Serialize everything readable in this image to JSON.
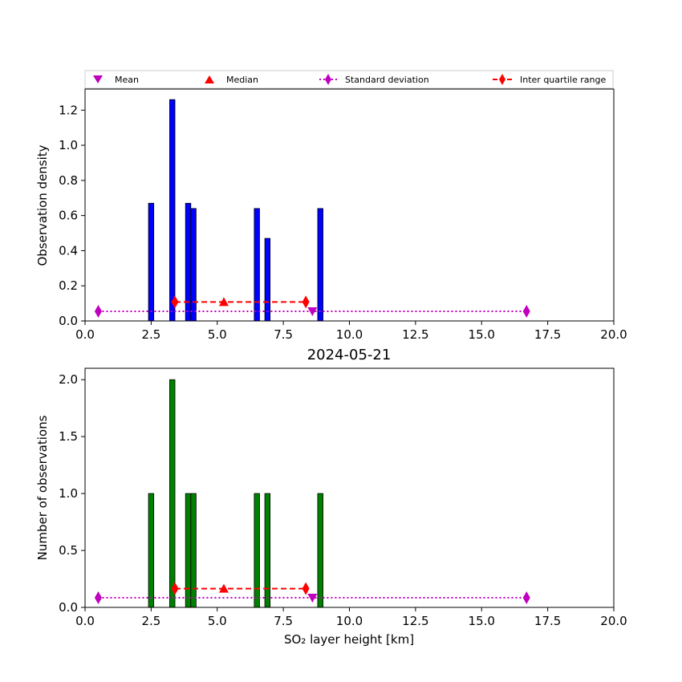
{
  "chart_data": [
    {
      "type": "bar",
      "title": "",
      "xlabel": "",
      "ylabel": "Observation density",
      "xlim": [
        0,
        20
      ],
      "ylim": [
        0,
        1.32
      ],
      "xticks": [
        "0.0",
        "2.5",
        "5.0",
        "7.5",
        "10.0",
        "12.5",
        "15.0",
        "17.5",
        "20.0"
      ],
      "yticks": [
        "0.0",
        "0.2",
        "0.4",
        "0.6",
        "0.8",
        "1.0",
        "1.2"
      ],
      "ytick_values": [
        0,
        0.2,
        0.4,
        0.6,
        0.8,
        1.0,
        1.2
      ],
      "bar_color": "#0000ff",
      "bars": [
        {
          "x0": 2.4,
          "x1": 2.6,
          "value": 0.67
        },
        {
          "x0": 3.2,
          "x1": 3.4,
          "value": 1.26
        },
        {
          "x0": 3.8,
          "x1": 4.0,
          "value": 0.67
        },
        {
          "x0": 4.0,
          "x1": 4.2,
          "value": 0.64
        },
        {
          "x0": 6.4,
          "x1": 6.6,
          "value": 0.64
        },
        {
          "x0": 6.8,
          "x1": 7.0,
          "value": 0.47
        },
        {
          "x0": 8.8,
          "x1": 9.0,
          "value": 0.64
        }
      ],
      "stats": {
        "mean": {
          "x": 8.6,
          "y": 0.055
        },
        "median": {
          "x": 5.25,
          "y": 0.108
        },
        "std": {
          "x": [
            0.5,
            16.7
          ],
          "y": 0.055
        },
        "iqr": {
          "x": [
            3.4,
            8.35
          ],
          "y": 0.108
        }
      }
    },
    {
      "type": "bar",
      "title": "2024-05-21",
      "xlabel": "SO₂ layer height [km]",
      "ylabel": "Number of observations",
      "xlim": [
        0,
        20
      ],
      "ylim": [
        0,
        2.1
      ],
      "xticks": [
        "0.0",
        "2.5",
        "5.0",
        "7.5",
        "10.0",
        "12.5",
        "15.0",
        "17.5",
        "20.0"
      ],
      "yticks": [
        "0.0",
        "0.5",
        "1.0",
        "1.5",
        "2.0"
      ],
      "ytick_values": [
        0,
        0.5,
        1.0,
        1.5,
        2.0
      ],
      "bar_color": "#008000",
      "bars": [
        {
          "x0": 2.4,
          "x1": 2.6,
          "value": 1
        },
        {
          "x0": 3.2,
          "x1": 3.4,
          "value": 2
        },
        {
          "x0": 3.8,
          "x1": 4.0,
          "value": 1
        },
        {
          "x0": 4.0,
          "x1": 4.2,
          "value": 1
        },
        {
          "x0": 6.4,
          "x1": 6.6,
          "value": 1
        },
        {
          "x0": 6.8,
          "x1": 7.0,
          "value": 1
        },
        {
          "x0": 8.8,
          "x1": 9.0,
          "value": 1
        }
      ],
      "stats": {
        "mean": {
          "x": 8.6,
          "y": 0.085
        },
        "median": {
          "x": 5.25,
          "y": 0.165
        },
        "std": {
          "x": [
            0.5,
            16.7
          ],
          "y": 0.085
        },
        "iqr": {
          "x": [
            3.4,
            8.35
          ],
          "y": 0.165
        }
      }
    }
  ],
  "legend": {
    "placement": "top",
    "entries": [
      {
        "key": "mean",
        "label": "Mean",
        "color": "#bf00bf",
        "marker": "triangle-down"
      },
      {
        "key": "median",
        "label": "Median",
        "color": "#ff0000",
        "marker": "triangle-up"
      },
      {
        "key": "std",
        "label": "Standard deviation",
        "color": "#bf00bf",
        "marker": "diamond",
        "line": "dotted"
      },
      {
        "key": "iqr",
        "label": "Inter quartile range",
        "color": "#ff0000",
        "marker": "diamond",
        "line": "dashed"
      }
    ]
  }
}
